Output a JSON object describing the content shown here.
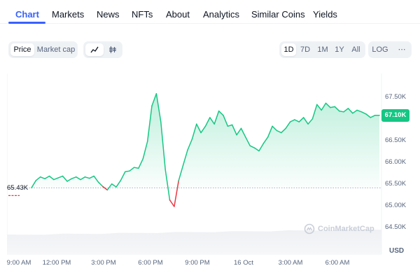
{
  "tabs": [
    {
      "label": "Chart",
      "active": true
    },
    {
      "label": "Markets"
    },
    {
      "label": "News"
    },
    {
      "label": "NFTs"
    },
    {
      "label": "About"
    },
    {
      "label": "Analytics"
    },
    {
      "label": "Similar Coins"
    },
    {
      "label": "Yields"
    }
  ],
  "toolbar": {
    "metric": {
      "price": "Price",
      "market_cap": "Market cap",
      "selected": "Price"
    },
    "chart_style": {
      "icons": [
        "line-chart-icon",
        "candlestick-icon"
      ],
      "selected": "line-chart-icon"
    },
    "ranges": [
      "1D",
      "7D",
      "1M",
      "1Y",
      "All"
    ],
    "selected_range": "1D",
    "log": "LOG",
    "more": "⋯"
  },
  "chart": {
    "current_price": "67.10K",
    "open_price_label": "65.43K",
    "currency": "USD",
    "watermark": "CoinMarketCap",
    "y_ticks": [
      "67.50K",
      "67.00K",
      "66.50K",
      "66.00K",
      "65.50K",
      "65.00K",
      "64.50K"
    ],
    "x_ticks": [
      "9:00 AM",
      "12:00 PM",
      "3:00 PM",
      "6:00 PM",
      "9:00 PM",
      "16 Oct",
      "3:00 AM",
      "6:00 AM"
    ],
    "colors": {
      "up": "#16c784",
      "down": "#ea3943",
      "accent": "#3861fb"
    }
  },
  "chart_data": {
    "type": "line",
    "ylim": [
      64500,
      67900
    ],
    "open": 65430,
    "x_unit": "hours since 9:00 AM",
    "series": [
      {
        "x": [
          0,
          0.3,
          0.6,
          0.9,
          1.2,
          1.5,
          1.8,
          2.1,
          2.4,
          2.7,
          3.0,
          3.3,
          3.6,
          3.9,
          4.2,
          4.5,
          4.8,
          5.1,
          5.4,
          5.7,
          6.0,
          6.3,
          6.6,
          6.9,
          7.2,
          7.5,
          7.8,
          8.1,
          8.4,
          8.7,
          9.0,
          9.3,
          9.6,
          9.9,
          10.2,
          10.5,
          10.8,
          11.1,
          11.4,
          11.7,
          12.0,
          12.3,
          12.6,
          12.9,
          13.2,
          13.5,
          13.8,
          14.1,
          14.4,
          14.7,
          15.0,
          15.3,
          15.6,
          15.9,
          16.2,
          16.5,
          16.8,
          17.1,
          17.4,
          17.7,
          18.0,
          18.3,
          18.6,
          18.9,
          19.2,
          19.5,
          19.8,
          20.1,
          20.4,
          20.7,
          21.0,
          21.3,
          21.6,
          21.9,
          22.2,
          22.5,
          22.8,
          23.1,
          23.4
        ],
        "y": [
          65430,
          65600,
          65680,
          65640,
          65700,
          65620,
          65660,
          65700,
          65580,
          65640,
          65680,
          65620,
          65680,
          65650,
          65700,
          65560,
          65460,
          65380,
          65520,
          65450,
          65600,
          65800,
          65820,
          65900,
          65880,
          66100,
          66500,
          67320,
          67600,
          66950,
          65850,
          65150,
          65000,
          65600,
          65950,
          66300,
          66550,
          66900,
          66700,
          66850,
          67050,
          66900,
          67200,
          67100,
          66850,
          66880,
          66650,
          66800,
          66600,
          66400,
          66350,
          66280,
          66450,
          66600,
          66850,
          66750,
          66700,
          66800,
          66950,
          67000,
          66950,
          67050,
          66900,
          67020,
          67350,
          67220,
          67380,
          67280,
          67300,
          67200,
          67180,
          67260,
          67150,
          67220,
          67180,
          67130,
          67050,
          67100,
          67100
        ]
      }
    ]
  }
}
